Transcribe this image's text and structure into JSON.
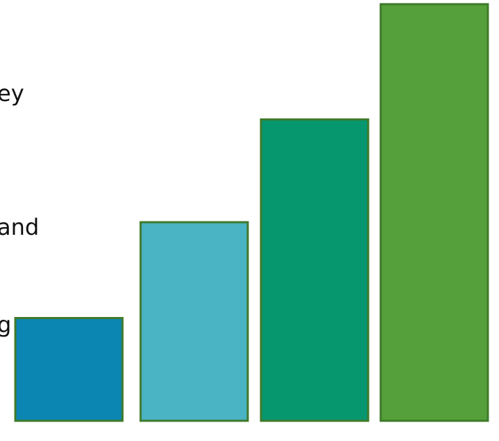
{
  "text_fragments": [
    "ey",
    "and",
    "g"
  ],
  "chart_data": {
    "type": "bar",
    "categories": [
      "",
      "",
      "",
      ""
    ],
    "values": [
      148,
      286,
      434,
      600
    ],
    "ylim": [
      0,
      600
    ],
    "grid": false,
    "colors": {
      "bars": [
        "#0b86b3",
        "#4ab3c4",
        "#06976f",
        "#55a03a"
      ],
      "outline": "#3f7a2a"
    }
  }
}
